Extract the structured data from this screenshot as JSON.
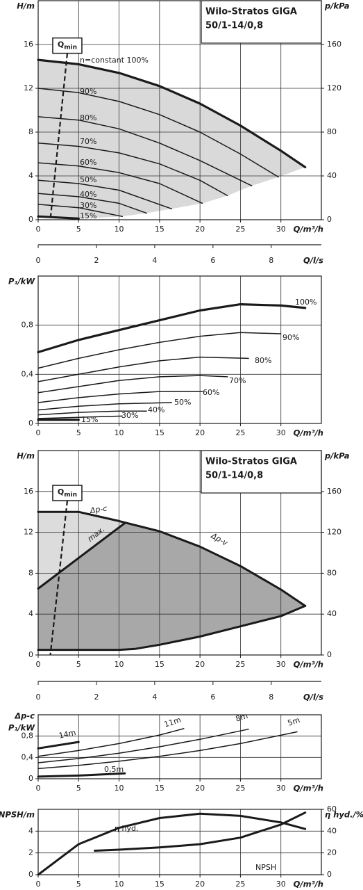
{
  "chart_data": [
    {
      "type": "line",
      "title": "Wilo-Stratos GIGA",
      "subtitle": "50/1-14/0,8",
      "xlabel": "Q/m³/h",
      "ylabel": "H/m",
      "y2label": "p/kPa",
      "x2label": "Q/l/s",
      "xlim": [
        0,
        35
      ],
      "xticks": [
        0,
        5,
        10,
        15,
        20,
        25,
        30
      ],
      "ylim": [
        0,
        20
      ],
      "yticks": [
        0,
        4,
        8,
        12,
        16
      ],
      "y2lim": [
        0,
        200
      ],
      "y2ticks": [
        0,
        40,
        80,
        120,
        160
      ],
      "x2lim": [
        0,
        9.72
      ],
      "x2ticks": [
        0,
        2,
        4,
        6,
        8
      ],
      "grid": true,
      "fill": "#d9d9d9",
      "qmin": {
        "main": "Q",
        "sub": "min",
        "x": [
          3.6,
          1.5
        ],
        "values": [
          15.2,
          0
        ]
      },
      "series": [
        {
          "name": "n=constant 100%",
          "color": "#1a1a1a",
          "line_width": 3.2,
          "x": [
            0,
            5,
            10,
            15,
            20,
            25,
            30,
            33
          ],
          "values": [
            14.6,
            14.2,
            13.4,
            12.2,
            10.6,
            8.6,
            6.3,
            4.8
          ]
        },
        {
          "name": "90%",
          "color": "#1a1a1a",
          "line_width": 1.5,
          "x": [
            0,
            5,
            10,
            15,
            20,
            25,
            29.7
          ],
          "values": [
            12,
            11.6,
            10.8,
            9.6,
            8,
            6,
            3.9
          ]
        },
        {
          "name": "80%",
          "color": "#1a1a1a",
          "line_width": 1.5,
          "x": [
            0,
            5,
            10,
            15,
            20,
            26.4
          ],
          "values": [
            9.4,
            9.1,
            8.3,
            7,
            5.4,
            3.1
          ]
        },
        {
          "name": "70%",
          "color": "#1a1a1a",
          "line_width": 1.5,
          "x": [
            0,
            5,
            10,
            15,
            20,
            23.4
          ],
          "values": [
            7,
            6.7,
            6.1,
            5.1,
            3.6,
            2.2
          ]
        },
        {
          "name": "60%",
          "color": "#1a1a1a",
          "line_width": 1.5,
          "x": [
            0,
            5,
            10,
            15,
            20.3
          ],
          "values": [
            5.2,
            4.9,
            4.3,
            3.3,
            1.5
          ]
        },
        {
          "name": "50%",
          "color": "#1a1a1a",
          "line_width": 1.5,
          "x": [
            0,
            5,
            10,
            16.5
          ],
          "values": [
            3.6,
            3.3,
            2.7,
            1
          ]
        },
        {
          "name": "40%",
          "color": "#1a1a1a",
          "line_width": 1.5,
          "x": [
            0,
            5,
            10,
            13.4
          ],
          "values": [
            2.4,
            2.1,
            1.5,
            0.6
          ]
        },
        {
          "name": "30%",
          "color": "#1a1a1a",
          "line_width": 1.5,
          "x": [
            0,
            5,
            10.4
          ],
          "values": [
            1.4,
            1.1,
            0.3
          ]
        },
        {
          "name": "15%",
          "color": "#1a1a1a",
          "line_width": 3.2,
          "x": [
            0,
            5
          ],
          "values": [
            0.3,
            0.1
          ]
        }
      ]
    },
    {
      "type": "line",
      "xlabel": "Q/m³/h",
      "ylabel": "P₁/kW",
      "xlim": [
        0,
        35
      ],
      "xticks": [
        0,
        5,
        10,
        15,
        20,
        25,
        30
      ],
      "ylim": [
        0,
        1.2
      ],
      "yticks": [
        0,
        {
          "value": 0.4,
          "label": "0,4"
        },
        {
          "value": 0.8,
          "label": "0,8"
        }
      ],
      "grid": true,
      "series": [
        {
          "name": "100%",
          "color": "#1a1a1a",
          "line_width": 3.2,
          "x": [
            0,
            5,
            10,
            15,
            20,
            25,
            30,
            33
          ],
          "values": [
            0.58,
            0.68,
            0.76,
            0.84,
            0.92,
            0.97,
            0.96,
            0.94
          ]
        },
        {
          "name": "90%",
          "color": "#1a1a1a",
          "line_width": 1.5,
          "x": [
            0,
            5,
            10,
            15,
            20,
            25,
            30
          ],
          "values": [
            0.45,
            0.53,
            0.6,
            0.66,
            0.71,
            0.74,
            0.73
          ]
        },
        {
          "name": "80%",
          "color": "#1a1a1a",
          "line_width": 1.5,
          "x": [
            0,
            5,
            10,
            15,
            20,
            26
          ],
          "values": [
            0.34,
            0.4,
            0.46,
            0.51,
            0.54,
            0.53
          ]
        },
        {
          "name": "70%",
          "color": "#1a1a1a",
          "line_width": 1.5,
          "x": [
            0,
            5,
            10,
            15,
            20,
            23.4
          ],
          "values": [
            0.25,
            0.3,
            0.35,
            0.38,
            0.39,
            0.38
          ]
        },
        {
          "name": "60%",
          "color": "#1a1a1a",
          "line_width": 1.5,
          "x": [
            0,
            5,
            10,
            15,
            20.3
          ],
          "values": [
            0.17,
            0.21,
            0.24,
            0.26,
            0.26
          ]
        },
        {
          "name": "50%",
          "color": "#1a1a1a",
          "line_width": 1.5,
          "x": [
            0,
            5,
            10,
            16.5
          ],
          "values": [
            0.11,
            0.14,
            0.16,
            0.17
          ]
        },
        {
          "name": "40%",
          "color": "#1a1a1a",
          "line_width": 1.5,
          "x": [
            0,
            5,
            10,
            13.4
          ],
          "values": [
            0.07,
            0.09,
            0.1,
            0.1
          ]
        },
        {
          "name": "30%",
          "color": "#1a1a1a",
          "line_width": 1.5,
          "x": [
            0,
            5,
            10.4
          ],
          "values": [
            0.04,
            0.05,
            0.06
          ]
        },
        {
          "name": "15%",
          "color": "#1a1a1a",
          "line_width": 3.2,
          "x": [
            0,
            5
          ],
          "values": [
            0.03,
            0.03
          ]
        }
      ]
    },
    {
      "type": "line",
      "title": "Wilo-Stratos GIGA",
      "subtitle": "50/1-14/0,8",
      "xlabel": "Q/m³/h",
      "ylabel": "H/m",
      "y2label": "p/kPa",
      "x2label": "Q/l/s",
      "xlim": [
        0,
        35
      ],
      "xticks": [
        0,
        5,
        10,
        15,
        20,
        25,
        30
      ],
      "ylim": [
        0,
        20
      ],
      "yticks": [
        0,
        4,
        8,
        12,
        16
      ],
      "y2lim": [
        0,
        200
      ],
      "y2ticks": [
        0,
        40,
        80,
        120,
        160
      ],
      "x2lim": [
        0,
        9.72
      ],
      "x2ticks": [
        0,
        2,
        4,
        6,
        8
      ],
      "grid": true,
      "fills": [
        "#dcdcdc",
        "#a8a8a8"
      ],
      "qmin": {
        "main": "Q",
        "sub": "min",
        "x": [
          3.6,
          1.5
        ],
        "values": [
          15.1,
          0
        ]
      },
      "series": [
        {
          "name": "Δp-c",
          "color": "#1a1a1a",
          "line_width": 3,
          "x": [
            0,
            5
          ],
          "values": [
            14,
            14
          ]
        },
        {
          "name": "max.",
          "color": "#1a1a1a",
          "line_width": 3,
          "x": [
            5,
            10,
            15,
            20,
            25,
            30,
            33
          ],
          "values": [
            14,
            13.1,
            12.1,
            10.6,
            8.7,
            6.4,
            4.8
          ]
        },
        {
          "name": "Δp-v",
          "color": "#1a1a1a",
          "line_width": 3,
          "x": [
            0,
            10.7
          ],
          "values": [
            6.5,
            12.9
          ]
        },
        {
          "color": "#1a1a1a",
          "line_width": 3,
          "x": [
            0,
            5,
            10,
            12,
            15,
            20,
            25,
            30,
            33
          ],
          "values": [
            0.5,
            0.5,
            0.5,
            0.6,
            1,
            1.8,
            2.8,
            3.8,
            4.8
          ]
        }
      ]
    },
    {
      "type": "line",
      "xlabel": "Q/m³/h",
      "ylabel": "P₁/kW",
      "mode": "Δp-c",
      "xlim": [
        0,
        35
      ],
      "xticks": [
        0,
        5,
        10,
        15,
        20,
        25,
        30
      ],
      "ylim": [
        0,
        1.2
      ],
      "yticks": [
        0,
        {
          "value": 0.4,
          "label": "0,4"
        },
        {
          "value": 0.8,
          "label": "0,8"
        }
      ],
      "grid": true,
      "series": [
        {
          "name": "14m",
          "color": "#1a1a1a",
          "line_width": 3,
          "x": [
            0,
            5
          ],
          "values": [
            0.57,
            0.69
          ]
        },
        {
          "name": "11m",
          "color": "#1a1a1a",
          "line_width": 1.5,
          "x": [
            0,
            5,
            10,
            15,
            18
          ],
          "values": [
            0.42,
            0.53,
            0.66,
            0.82,
            0.94
          ]
        },
        {
          "name": "8m",
          "color": "#1a1a1a",
          "line_width": 1.5,
          "x": [
            0,
            5,
            10,
            15,
            20,
            26
          ],
          "values": [
            0.3,
            0.38,
            0.48,
            0.6,
            0.74,
            0.93
          ]
        },
        {
          "name": "5m",
          "color": "#1a1a1a",
          "line_width": 1.5,
          "x": [
            0,
            5,
            10,
            15,
            20,
            25,
            32
          ],
          "values": [
            0.19,
            0.25,
            0.33,
            0.42,
            0.53,
            0.66,
            0.88
          ]
        },
        {
          "name": "0,5m",
          "color": "#1a1a1a",
          "line_width": 3,
          "x": [
            0,
            5,
            10.7
          ],
          "values": [
            0.04,
            0.06,
            0.1
          ]
        }
      ]
    },
    {
      "type": "line",
      "xlabel": "Q/m³/h",
      "ylabel": "NPSH/m",
      "y2label": "η hyd./%",
      "xlim": [
        0,
        35
      ],
      "xticks": [
        0,
        5,
        10,
        15,
        20,
        25,
        30
      ],
      "ylim": [
        0,
        6
      ],
      "yticks": [
        0,
        2,
        4
      ],
      "y2lim": [
        0,
        60
      ],
      "y2ticks": [
        0,
        20,
        40,
        60
      ],
      "grid": true,
      "series": [
        {
          "name": "η hyd.",
          "axis": "y2",
          "color": "#1a1a1a",
          "line_width": 3,
          "x": [
            0,
            5,
            10,
            15,
            20,
            25,
            30,
            33
          ],
          "values": [
            0,
            28,
            43,
            52,
            56,
            54,
            48,
            42
          ]
        },
        {
          "name": "NPSH",
          "color": "#1a1a1a",
          "line_width": 3,
          "x": [
            7,
            10,
            15,
            20,
            25,
            30,
            33
          ],
          "values": [
            2.2,
            2.3,
            2.5,
            2.8,
            3.4,
            4.6,
            5.7
          ]
        }
      ]
    }
  ]
}
